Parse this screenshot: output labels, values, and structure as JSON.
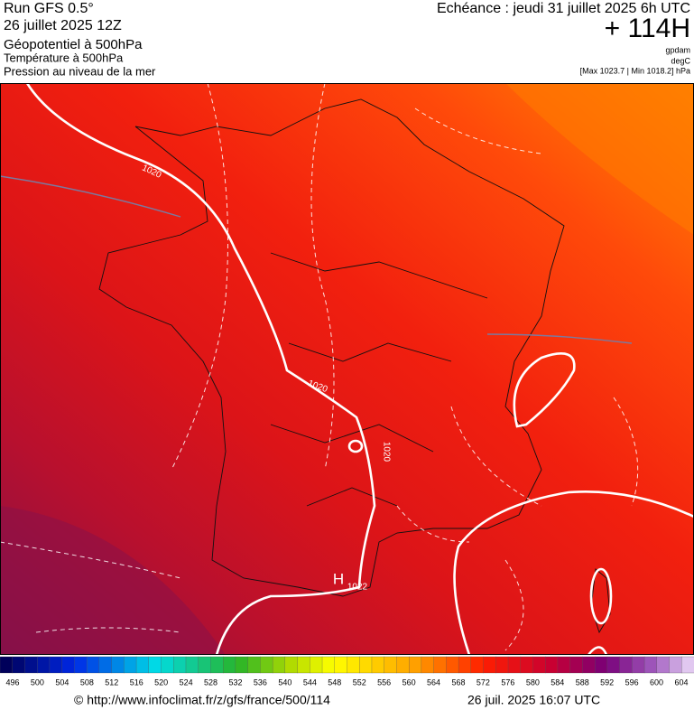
{
  "header": {
    "run": "Run GFS 0.5°",
    "date": "26 juillet 2025 12Z",
    "layer1": "Géopotentiel à 500hPa",
    "layer2": "Température à 500hPa",
    "layer3": "Pression au niveau de la mer",
    "forecast": "Echéance : jeudi 31 juillet 2025 6h UTC",
    "lead": "+ 114H",
    "unit1": "gpdam",
    "unit2": "degC",
    "range": "[Max 1023.7 | Min 1018.2] hPa"
  },
  "map": {
    "isobar_labels": [
      "1020",
      "1020",
      "1020"
    ],
    "high": {
      "symbol": "H",
      "pressure": "1022"
    }
  },
  "colorbar": {
    "labels": [
      496,
      500,
      504,
      508,
      512,
      516,
      520,
      524,
      528,
      532,
      536,
      540,
      544,
      548,
      552,
      556,
      560,
      564,
      568,
      572,
      576,
      580,
      584,
      588,
      592,
      596,
      600,
      604
    ]
  },
  "footer": {
    "url": "© http://www.infoclimat.fr/z/gfs/france/500/114",
    "timestamp": "26 juil. 2025 16:07 UTC"
  }
}
